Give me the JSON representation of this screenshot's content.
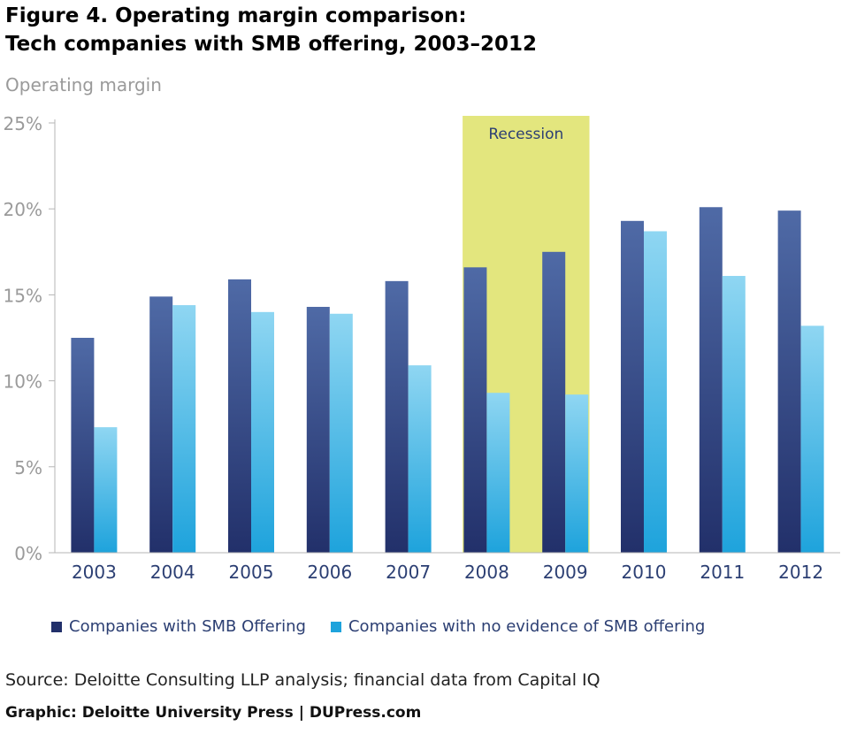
{
  "title_lines": [
    "Figure 4. Operating margin comparison:",
    "Tech companies with SMB offering, 2003–2012"
  ],
  "source": "Source: Deloitte Consulting LLP analysis; financial data from Capital IQ",
  "credit": "Graphic: Deloitte University Press  |  DUPress.com",
  "colors": {
    "smb_top": "#4f6aa6",
    "smb_bottom": "#22306a",
    "nosmb_top": "#8fd6f2",
    "nosmb_bottom": "#1ea3dc",
    "recession": "#e3e67e",
    "axis_text": "#9a9a9a",
    "tick_text": "#2c3f73"
  },
  "chart_data": {
    "type": "bar",
    "title": "Figure 4. Operating margin comparison: Tech companies with SMB offering, 2003–2012",
    "ylabel": "Operating margin",
    "xlabel": "",
    "ylim": [
      0,
      25
    ],
    "yticks": [
      0,
      5,
      10,
      15,
      20,
      25
    ],
    "ytick_labels": [
      "0%",
      "5%",
      "10%",
      "15%",
      "20%",
      "25%"
    ],
    "categories": [
      "2003",
      "2004",
      "2005",
      "2006",
      "2007",
      "2008",
      "2009",
      "2010",
      "2011",
      "2012"
    ],
    "series": [
      {
        "name": "Companies with SMB Offering",
        "values": [
          12.5,
          14.9,
          15.9,
          14.3,
          15.8,
          16.6,
          17.5,
          19.3,
          20.1,
          19.9
        ]
      },
      {
        "name": "Companies with no evidence of SMB offering",
        "values": [
          7.3,
          14.4,
          14.0,
          13.9,
          10.9,
          9.3,
          9.2,
          18.7,
          16.1,
          13.2
        ]
      }
    ],
    "annotation": {
      "label": "Recession",
      "from": "2008",
      "to": "2009"
    },
    "grid": false,
    "legend_position": "bottom-left"
  }
}
